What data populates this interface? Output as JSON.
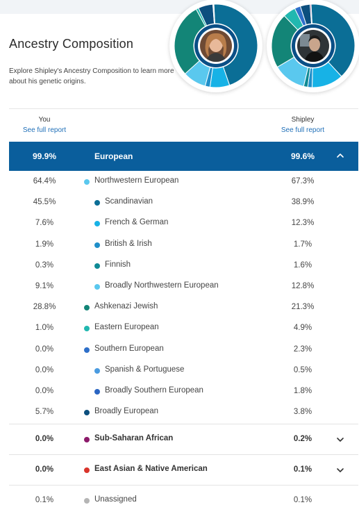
{
  "page": {
    "title": "Ancestry Composition",
    "subtitle": "Explore Shipley's Ancestry Composition to learn more about his genetic origins."
  },
  "columns": {
    "you_label": "You",
    "you_link": "See full report",
    "other_label": "Shipley",
    "other_link": "See full report"
  },
  "european": {
    "name": "European",
    "you": "99.9%",
    "other": "99.6%",
    "expanded": true
  },
  "rows": [
    {
      "name": "Northwestern European",
      "you": "64.4%",
      "other": "67.3%",
      "color": "#5ac8ee",
      "level": 1
    },
    {
      "name": "Scandinavian",
      "you": "45.5%",
      "other": "38.9%",
      "color": "#0b6e96",
      "level": 2
    },
    {
      "name": "French & German",
      "you": "7.6%",
      "other": "12.3%",
      "color": "#17b2e6",
      "level": 2
    },
    {
      "name": "British & Irish",
      "you": "1.9%",
      "other": "1.7%",
      "color": "#1f8fc9",
      "level": 2
    },
    {
      "name": "Finnish",
      "you": "0.3%",
      "other": "1.6%",
      "color": "#0f8a95",
      "level": 2
    },
    {
      "name": "Broadly Northwestern European",
      "you": "9.1%",
      "other": "12.8%",
      "color": "#5ac8ee",
      "level": 2
    },
    {
      "name": "Ashkenazi Jewish",
      "you": "28.8%",
      "other": "21.3%",
      "color": "#138577",
      "level": 1
    },
    {
      "name": "Eastern European",
      "you": "1.0%",
      "other": "4.9%",
      "color": "#21b8b0",
      "level": 1
    },
    {
      "name": "Southern European",
      "you": "0.0%",
      "other": "2.3%",
      "color": "#2e6fc9",
      "level": 1
    },
    {
      "name": "Spanish & Portuguese",
      "you": "0.0%",
      "other": "0.5%",
      "color": "#4a9be0",
      "level": 2
    },
    {
      "name": "Broadly Southern European",
      "you": "0.0%",
      "other": "1.8%",
      "color": "#2a65c2",
      "level": 2
    },
    {
      "name": "Broadly European",
      "you": "5.7%",
      "other": "3.8%",
      "color": "#0c4f7e",
      "level": 1
    }
  ],
  "majors": [
    {
      "name": "Sub-Saharan African",
      "you": "0.0%",
      "other": "0.2%",
      "color": "#8c1a6a"
    },
    {
      "name": "East Asian & Native American",
      "you": "0.0%",
      "other": "0.1%",
      "color": "#d9342b"
    },
    {
      "name": "Unassigned",
      "you": "0.1%",
      "other": "0.1%",
      "color": "#b5b5b5"
    }
  ],
  "donuts": {
    "you": [
      {
        "value": 45.5,
        "color": "#0b6e96"
      },
      {
        "value": 7.6,
        "color": "#17b2e6"
      },
      {
        "value": 1.9,
        "color": "#1f8fc9"
      },
      {
        "value": 9.1,
        "color": "#5ac8ee"
      },
      {
        "value": 28.8,
        "color": "#138577"
      },
      {
        "value": 1.0,
        "color": "#21b8b0"
      },
      {
        "value": 5.7,
        "color": "#0c4f7e"
      },
      {
        "value": 0.4,
        "color": "#d8dde2"
      }
    ],
    "shipley": [
      {
        "value": 38.9,
        "color": "#0b6e96"
      },
      {
        "value": 12.3,
        "color": "#17b2e6"
      },
      {
        "value": 1.7,
        "color": "#1f8fc9"
      },
      {
        "value": 1.6,
        "color": "#0f8a95"
      },
      {
        "value": 12.8,
        "color": "#5ac8ee"
      },
      {
        "value": 21.3,
        "color": "#138577"
      },
      {
        "value": 4.9,
        "color": "#21b8b0"
      },
      {
        "value": 2.3,
        "color": "#2e6fc9"
      },
      {
        "value": 3.8,
        "color": "#0c4f7e"
      },
      {
        "value": 0.4,
        "color": "#8c1a6a"
      }
    ]
  }
}
